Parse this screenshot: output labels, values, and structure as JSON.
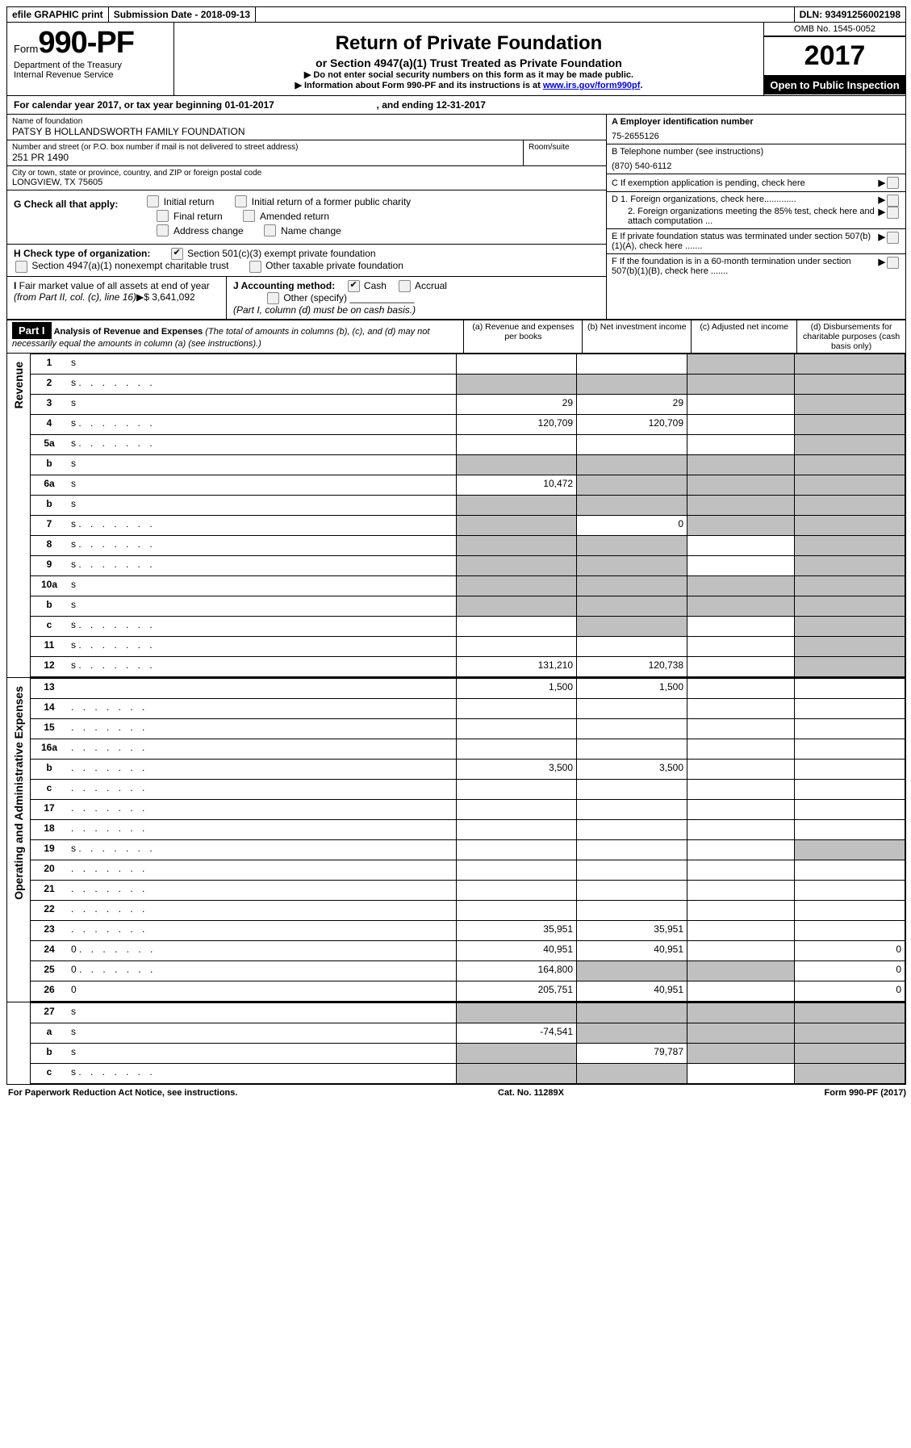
{
  "top": {
    "efile": "efile GRAPHIC print",
    "submission": "Submission Date - 2018-09-13",
    "dln": "DLN: 93491256002198"
  },
  "header": {
    "form_word": "Form",
    "form_no": "990-PF",
    "dept": "Department of the Treasury",
    "irs": "Internal Revenue Service",
    "title": "Return of Private Foundation",
    "subtitle": "or Section 4947(a)(1) Trust Treated as Private Foundation",
    "note1": "▶ Do not enter social security numbers on this form as it may be made public.",
    "note2_pre": "▶ Information about Form 990-PF and its instructions is at ",
    "note2_link": "www.irs.gov/form990pf",
    "omb": "OMB No. 1545-0052",
    "year": "2017",
    "open": "Open to Public Inspection"
  },
  "calyear": {
    "text_pre": "For calendar year 2017, or tax year beginning ",
    "begin": "01-01-2017",
    "mid": " , and ending ",
    "end": "12-31-2017"
  },
  "info": {
    "name_label": "Name of foundation",
    "name": "PATSY B HOLLANDSWORTH FAMILY FOUNDATION",
    "addr_label": "Number and street (or P.O. box number if mail is not delivered to street address)",
    "room_label": "Room/suite",
    "addr": "251 PR 1490",
    "city_label": "City or town, state or province, country, and ZIP or foreign postal code",
    "city": "LONGVIEW, TX  75605",
    "A_label": "A Employer identification number",
    "A": "75-2655126",
    "B_label": "B Telephone number (see instructions)",
    "B": "(870) 540-6112",
    "C": "C If exemption application is pending, check here",
    "D1": "D 1. Foreign organizations, check here.............",
    "D2": "2. Foreign organizations meeting the 85% test, check here and attach computation ...",
    "E": "E   If private foundation status was terminated under section 507(b)(1)(A), check here .......",
    "F": "F   If the foundation is in a 60-month termination under section 507(b)(1)(B), check here .......",
    "G_label": "G Check all that apply:",
    "G_initial": "Initial return",
    "G_initial_former": "Initial return of a former public charity",
    "G_final": "Final return",
    "G_amended": "Amended return",
    "G_address": "Address change",
    "G_name": "Name change",
    "H_label": "H Check type of organization:",
    "H_501c3": "Section 501(c)(3) exempt private foundation",
    "H_4947": "Section 4947(a)(1) nonexempt charitable trust",
    "H_other": "Other taxable private foundation",
    "I_label": "I Fair market value of all assets at end of year (from Part II, col. (c), line 16)▶$",
    "I_value": "3,641,092",
    "J_label": "J Accounting method:",
    "J_cash": "Cash",
    "J_accrual": "Accrual",
    "J_other": "Other (specify)",
    "J_note": "(Part I, column (d) must be on cash basis.)"
  },
  "part1": {
    "label": "Part I",
    "title": "Analysis of Revenue and Expenses",
    "title_note": "(The total of amounts in columns (b), (c), and (d) may not necessarily equal the amounts in column (a) (see instructions).)",
    "col_a": "(a)   Revenue and expenses per books",
    "col_b": "(b)  Net investment income",
    "col_c": "(c)  Adjusted net income",
    "col_d": "(d)  Disbursements for charitable purposes (cash basis only)",
    "side_revenue": "Revenue",
    "side_expenses": "Operating and Administrative Expenses"
  },
  "rows": [
    {
      "n": "1",
      "d": "s",
      "a": "",
      "b": "",
      "c": "s"
    },
    {
      "n": "2",
      "d": "s",
      "dots": true,
      "a": "s",
      "b": "s",
      "c": "s",
      "nb_bottom": true
    },
    {
      "n": "3",
      "d": "s",
      "a": "29",
      "b": "29",
      "c": ""
    },
    {
      "n": "4",
      "d": "s",
      "dots": true,
      "a": "120,709",
      "b": "120,709",
      "c": ""
    },
    {
      "n": "5a",
      "d": "s",
      "dots": true,
      "a": "",
      "b": "",
      "c": ""
    },
    {
      "n": "b",
      "d": "s",
      "a": "s",
      "b": "s",
      "c": "s"
    },
    {
      "n": "6a",
      "d": "s",
      "a": "10,472",
      "b": "s",
      "c": "s"
    },
    {
      "n": "b",
      "d": "s",
      "a": "s",
      "b": "s",
      "c": "s"
    },
    {
      "n": "7",
      "d": "s",
      "dots": true,
      "a": "s",
      "b": "0",
      "c": "s"
    },
    {
      "n": "8",
      "d": "s",
      "dots": true,
      "a": "s",
      "b": "s",
      "c": ""
    },
    {
      "n": "9",
      "d": "s",
      "dots": true,
      "a": "s",
      "b": "s",
      "c": ""
    },
    {
      "n": "10a",
      "d": "s",
      "a": "s",
      "b": "s",
      "c": "s",
      "nb_bottom": true
    },
    {
      "n": "b",
      "d": "s",
      "a": "s",
      "b": "s",
      "c": "s"
    },
    {
      "n": "c",
      "d": "s",
      "dots": true,
      "a": "",
      "b": "s",
      "c": ""
    },
    {
      "n": "11",
      "d": "s",
      "dots": true,
      "a": "",
      "b": "",
      "c": ""
    },
    {
      "n": "12",
      "d": "s",
      "dots": true,
      "a": "131,210",
      "b": "120,738",
      "c": ""
    }
  ],
  "exp_rows": [
    {
      "n": "13",
      "d": "",
      "a": "1,500",
      "b": "1,500",
      "c": ""
    },
    {
      "n": "14",
      "d": "",
      "dots": true,
      "a": "",
      "b": "",
      "c": ""
    },
    {
      "n": "15",
      "d": "",
      "dots": true,
      "a": "",
      "b": "",
      "c": ""
    },
    {
      "n": "16a",
      "d": "",
      "dots": true,
      "a": "",
      "b": "",
      "c": ""
    },
    {
      "n": "b",
      "d": "",
      "dots": true,
      "a": "3,500",
      "b": "3,500",
      "c": ""
    },
    {
      "n": "c",
      "d": "",
      "dots": true,
      "a": "",
      "b": "",
      "c": ""
    },
    {
      "n": "17",
      "d": "",
      "dots": true,
      "a": "",
      "b": "",
      "c": ""
    },
    {
      "n": "18",
      "d": "",
      "dots": true,
      "a": "",
      "b": "",
      "c": ""
    },
    {
      "n": "19",
      "d": "s",
      "dots": true,
      "a": "",
      "b": "",
      "c": ""
    },
    {
      "n": "20",
      "d": "",
      "dots": true,
      "a": "",
      "b": "",
      "c": ""
    },
    {
      "n": "21",
      "d": "",
      "dots": true,
      "a": "",
      "b": "",
      "c": ""
    },
    {
      "n": "22",
      "d": "",
      "dots": true,
      "a": "",
      "b": "",
      "c": ""
    },
    {
      "n": "23",
      "d": "",
      "dots": true,
      "a": "35,951",
      "b": "35,951",
      "c": ""
    },
    {
      "n": "24",
      "d": "0",
      "dots": true,
      "a": "40,951",
      "b": "40,951",
      "c": ""
    },
    {
      "n": "25",
      "d": "0",
      "dots": true,
      "a": "164,800",
      "b": "s",
      "c": "s"
    },
    {
      "n": "26",
      "d": "0",
      "a": "205,751",
      "b": "40,951",
      "c": ""
    }
  ],
  "sub_rows": [
    {
      "n": "27",
      "d": "s",
      "a": "s",
      "b": "s",
      "c": "s"
    },
    {
      "n": "a",
      "d": "s",
      "a": "-74,541",
      "b": "s",
      "c": "s"
    },
    {
      "n": "b",
      "d": "s",
      "a": "s",
      "b": "79,787",
      "c": "s"
    },
    {
      "n": "c",
      "d": "s",
      "dots": true,
      "a": "s",
      "b": "s",
      "c": ""
    }
  ],
  "footer": {
    "left": "For Paperwork Reduction Act Notice, see instructions.",
    "mid": "Cat. No. 11289X",
    "right": "Form 990-PF (2017)"
  }
}
